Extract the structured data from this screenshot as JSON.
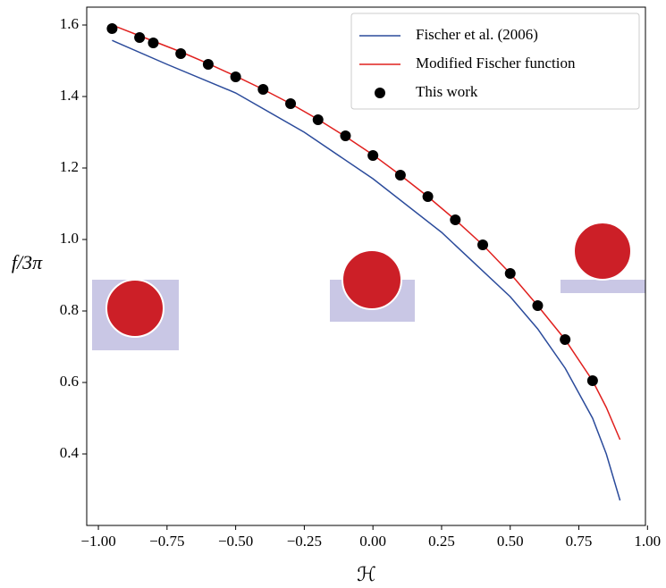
{
  "chart_data": {
    "type": "line",
    "xlabel": "ℋ",
    "ylabel": "f/3π",
    "xlim": [
      -1.0425,
      0.9925
    ],
    "ylim": [
      0.2,
      1.65
    ],
    "xticks": [
      {
        "value": -1,
        "label": "−1.00"
      },
      {
        "value": -0.75,
        "label": "−0.75"
      },
      {
        "value": -0.5,
        "label": "−0.50"
      },
      {
        "value": -0.25,
        "label": "−0.25"
      },
      {
        "value": 0,
        "label": "0.00"
      },
      {
        "value": 0.25,
        "label": "0.25"
      },
      {
        "value": 0.5,
        "label": "0.50"
      },
      {
        "value": 0.75,
        "label": "0.75"
      },
      {
        "value": 1,
        "label": "1.00"
      }
    ],
    "yticks": [
      0.4,
      0.6,
      0.8,
      {
        "value": 1,
        "label": "1.0"
      },
      1.2,
      1.4,
      1.6
    ],
    "legend": "upper right",
    "series": [
      {
        "name": "Fischer et al. (2006)",
        "type": "line",
        "color": "#2b4b9b",
        "x": [
          -0.95,
          -0.75,
          -0.5,
          -0.25,
          0,
          0.25,
          0.5,
          0.6,
          0.7,
          0.8,
          0.85,
          0.9
        ],
        "values": [
          1.557,
          1.49,
          1.41,
          1.3,
          1.17,
          1.02,
          0.84,
          0.75,
          0.64,
          0.5,
          0.4,
          0.27
        ]
      },
      {
        "name": "Modified Fischer function",
        "type": "line",
        "color": "#e0201e",
        "x": [
          -0.95,
          -0.85,
          -0.8,
          -0.7,
          -0.6,
          -0.5,
          -0.4,
          -0.3,
          -0.2,
          -0.1,
          0,
          0.1,
          0.2,
          0.3,
          0.4,
          0.5,
          0.6,
          0.7,
          0.8,
          0.85,
          0.9
        ],
        "values": [
          1.6,
          1.57,
          1.555,
          1.525,
          1.492,
          1.457,
          1.42,
          1.38,
          1.336,
          1.288,
          1.237,
          1.18,
          1.12,
          1.055,
          0.985,
          0.905,
          0.815,
          0.72,
          0.605,
          0.53,
          0.44
        ]
      },
      {
        "name": "This work",
        "type": "scatter",
        "color": "#000000",
        "x": [
          -0.95,
          -0.85,
          -0.8,
          -0.7,
          -0.6,
          -0.5,
          -0.4,
          -0.3,
          -0.2,
          -0.1,
          0,
          0.1,
          0.2,
          0.3,
          0.4,
          0.5,
          0.6,
          0.7,
          0.8
        ],
        "values": [
          1.59,
          1.565,
          1.55,
          1.52,
          1.49,
          1.455,
          1.42,
          1.38,
          1.335,
          1.29,
          1.235,
          1.18,
          1.12,
          1.055,
          0.985,
          0.905,
          0.815,
          0.72,
          0.605
        ]
      }
    ]
  }
}
